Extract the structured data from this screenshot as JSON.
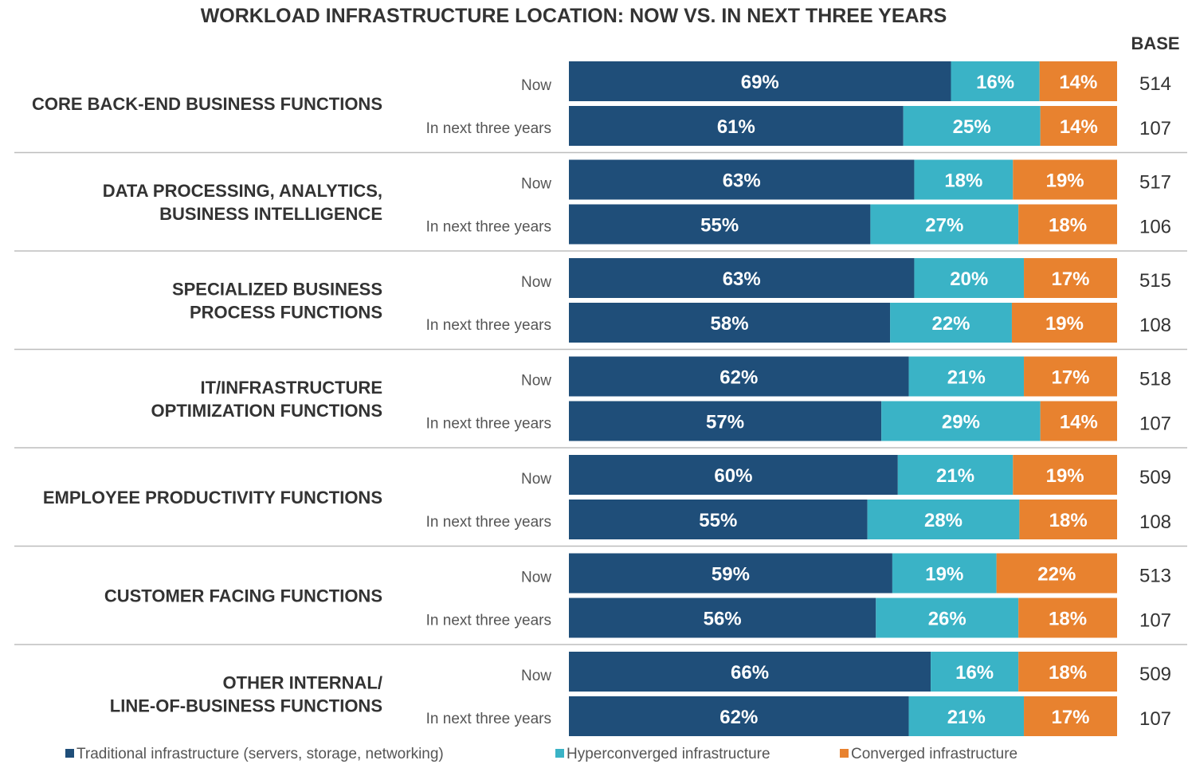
{
  "chart_data": {
    "type": "bar",
    "orientation": "horizontal",
    "stacked": true,
    "title": "WORKLOAD INFRASTRUCTURE LOCATION: NOW VS. IN NEXT THREE YEARS",
    "base_header": "BASE",
    "xlim": [
      0,
      100
    ],
    "grid": false,
    "legend_position": "bottom",
    "series": [
      {
        "name": "Traditional infrastructure (servers, storage, networking)",
        "color": "#1f4e79"
      },
      {
        "name": "Hyperconverged infrastructure",
        "color": "#3ab3c6"
      },
      {
        "name": "Converged infrastructure",
        "color": "#e8822f"
      }
    ],
    "categories": [
      {
        "label_lines": [
          "CORE BACK-END BUSINESS FUNCTIONS"
        ],
        "rows": [
          {
            "period": "Now",
            "values": [
              69,
              16,
              14
            ],
            "labels": [
              "69%",
              "16%",
              "14%"
            ],
            "base": "514"
          },
          {
            "period": "In next three years",
            "values": [
              61,
              25,
              14
            ],
            "labels": [
              "61%",
              "25%",
              "14%"
            ],
            "base": "107"
          }
        ]
      },
      {
        "label_lines": [
          "DATA PROCESSING, ANALYTICS,",
          "BUSINESS INTELLIGENCE"
        ],
        "rows": [
          {
            "period": "Now",
            "values": [
              63,
              18,
              19
            ],
            "labels": [
              "63%",
              "18%",
              "19%"
            ],
            "base": "517"
          },
          {
            "period": "In next three years",
            "values": [
              55,
              27,
              18
            ],
            "labels": [
              "55%",
              "27%",
              "18%"
            ],
            "base": "106"
          }
        ]
      },
      {
        "label_lines": [
          "SPECIALIZED BUSINESS",
          "PROCESS FUNCTIONS"
        ],
        "rows": [
          {
            "period": "Now",
            "values": [
              63,
              20,
              17
            ],
            "labels": [
              "63%",
              "20%",
              "17%"
            ],
            "base": "515"
          },
          {
            "period": "In next three years",
            "values": [
              58,
              22,
              19
            ],
            "labels": [
              "58%",
              "22%",
              "19%"
            ],
            "base": "108"
          }
        ]
      },
      {
        "label_lines": [
          "IT/INFRASTRUCTURE",
          "OPTIMIZATION FUNCTIONS"
        ],
        "rows": [
          {
            "period": "Now",
            "values": [
              62,
              21,
              17
            ],
            "labels": [
              "62%",
              "21%",
              "17%"
            ],
            "base": "518"
          },
          {
            "period": "In next three years",
            "values": [
              57,
              29,
              14
            ],
            "labels": [
              "57%",
              "29%",
              "14%"
            ],
            "base": "107"
          }
        ]
      },
      {
        "label_lines": [
          "EMPLOYEE PRODUCTIVITY FUNCTIONS"
        ],
        "rows": [
          {
            "period": "Now",
            "values": [
              60,
              21,
              19
            ],
            "labels": [
              "60%",
              "21%",
              "19%"
            ],
            "base": "509"
          },
          {
            "period": "In next three years",
            "values": [
              55,
              28,
              18
            ],
            "labels": [
              "55%",
              "28%",
              "18%"
            ],
            "base": "108"
          }
        ]
      },
      {
        "label_lines": [
          "CUSTOMER FACING FUNCTIONS"
        ],
        "rows": [
          {
            "period": "Now",
            "values": [
              59,
              19,
              22
            ],
            "labels": [
              "59%",
              "19%",
              "22%"
            ],
            "base": "513"
          },
          {
            "period": "In next three years",
            "values": [
              56,
              26,
              18
            ],
            "labels": [
              "56%",
              "26%",
              "18%"
            ],
            "base": "107"
          }
        ]
      },
      {
        "label_lines": [
          "OTHER INTERNAL/",
          "LINE-OF-BUSINESS FUNCTIONS"
        ],
        "rows": [
          {
            "period": "Now",
            "values": [
              66,
              16,
              18
            ],
            "labels": [
              "66%",
              "16%",
              "18%"
            ],
            "base": "509"
          },
          {
            "period": "In next three years",
            "values": [
              62,
              21,
              17
            ],
            "labels": [
              "62%",
              "21%",
              "17%"
            ],
            "base": "107"
          }
        ]
      }
    ]
  }
}
